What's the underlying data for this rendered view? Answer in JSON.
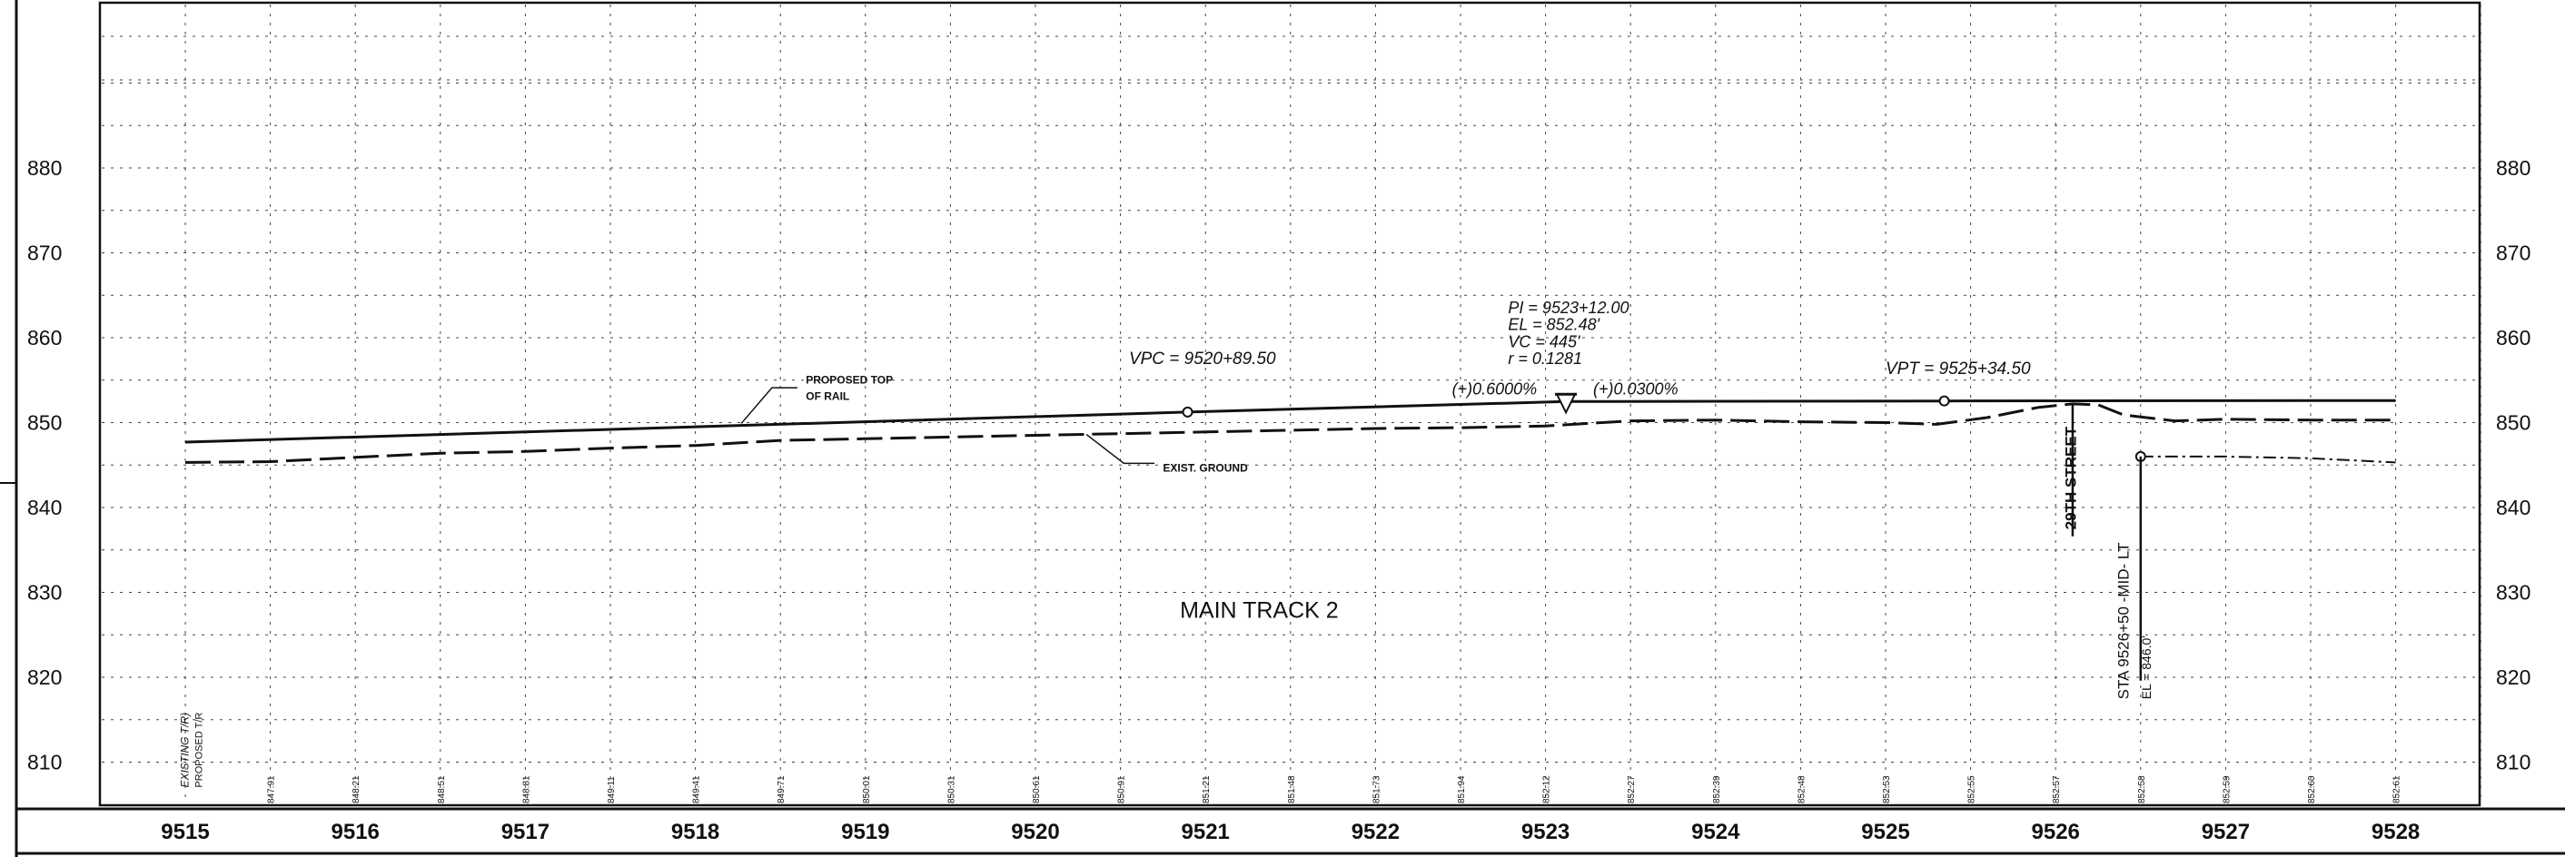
{
  "drawing": {
    "title": "MAIN TRACK 2"
  },
  "elevation_axis": {
    "labels": [
      "880",
      "870",
      "860",
      "850",
      "840",
      "830",
      "820",
      "810"
    ],
    "values": [
      880,
      870,
      860,
      850,
      840,
      830,
      820,
      810
    ]
  },
  "station_axis": {
    "labels": [
      "9515",
      "9516",
      "9517",
      "9518",
      "9519",
      "9520",
      "9521",
      "9522",
      "9523",
      "9524",
      "9525",
      "9526",
      "9527",
      "9528"
    ],
    "values": [
      9515,
      9516,
      9517,
      9518,
      9519,
      9520,
      9521,
      9522,
      9523,
      9524,
      9525,
      9526,
      9527,
      9528
    ]
  },
  "bottom_elevation_labels": [
    {
      "station": 9515.5,
      "text": "847.91"
    },
    {
      "station": 9516.0,
      "text": "848.21"
    },
    {
      "station": 9516.5,
      "text": "848.51"
    },
    {
      "station": 9517.0,
      "text": "848.81"
    },
    {
      "station": 9517.5,
      "text": "849.11"
    },
    {
      "station": 9518.0,
      "text": "849.41"
    },
    {
      "station": 9518.5,
      "text": "849.71"
    },
    {
      "station": 9519.0,
      "text": "850.01"
    },
    {
      "station": 9519.5,
      "text": "850.31"
    },
    {
      "station": 9520.0,
      "text": "850.61"
    },
    {
      "station": 9520.5,
      "text": "850.91"
    },
    {
      "station": 9521.0,
      "text": "851.21"
    },
    {
      "station": 9521.5,
      "text": "851.48"
    },
    {
      "station": 9522.0,
      "text": "851.73"
    },
    {
      "station": 9522.5,
      "text": "851.94"
    },
    {
      "station": 9523.0,
      "text": "852.12"
    },
    {
      "station": 9523.5,
      "text": "852.27"
    },
    {
      "station": 9524.0,
      "text": "852.39"
    },
    {
      "station": 9524.5,
      "text": "852.48"
    },
    {
      "station": 9525.0,
      "text": "852.53"
    },
    {
      "station": 9525.5,
      "text": "852.55"
    },
    {
      "station": 9526.0,
      "text": "852.57"
    },
    {
      "station": 9526.5,
      "text": "852.58"
    },
    {
      "station": 9527.0,
      "text": "852.59"
    },
    {
      "station": 9527.5,
      "text": "852.60"
    },
    {
      "station": 9528.0,
      "text": "852.61"
    }
  ],
  "left_legend": {
    "line1": "EXISTING T/R)",
    "line2": "PROPOSED T/R"
  },
  "profiles": {
    "proposed_top_of_rail": {
      "label": "PROPOSED TOP OF RAIL",
      "label_line1": "PROPOSED TOP",
      "label_line2": "OF RAIL",
      "points": [
        [
          9515,
          847.7
        ],
        [
          9520.895,
          851.24
        ],
        [
          9523.12,
          852.48
        ],
        [
          9525.345,
          852.55
        ],
        [
          9528,
          852.6
        ]
      ]
    },
    "existing_ground": {
      "label": "EXIST. GROUND",
      "points": [
        [
          9515,
          845.3
        ],
        [
          9515.5,
          845.4
        ],
        [
          9516,
          845.9
        ],
        [
          9516.5,
          846.4
        ],
        [
          9517,
          846.6
        ],
        [
          9517.5,
          847.0
        ],
        [
          9518,
          847.3
        ],
        [
          9518.5,
          847.9
        ],
        [
          9519,
          848.1
        ],
        [
          9519.5,
          848.3
        ],
        [
          9520,
          848.5
        ],
        [
          9520.5,
          848.7
        ],
        [
          9521,
          848.9
        ],
        [
          9521.5,
          849.1
        ],
        [
          9522,
          849.3
        ],
        [
          9522.5,
          849.4
        ],
        [
          9523,
          849.6
        ],
        [
          9523.5,
          850.2
        ],
        [
          9524,
          850.3
        ],
        [
          9524.5,
          850.1
        ],
        [
          9525,
          850.0
        ],
        [
          9525.3,
          849.8
        ],
        [
          9525.6,
          850.6
        ],
        [
          9525.9,
          851.8
        ],
        [
          9526.1,
          852.2
        ],
        [
          9526.25,
          852.1
        ],
        [
          9526.4,
          850.9
        ],
        [
          9526.7,
          850.2
        ],
        [
          9527.0,
          850.4
        ],
        [
          9527.5,
          850.3
        ],
        [
          9528,
          850.3
        ]
      ]
    },
    "dash_dot_line": {
      "points": [
        [
          9526.5,
          846.0
        ],
        [
          9527.0,
          846.0
        ],
        [
          9527.5,
          845.8
        ],
        [
          9528,
          845.3
        ]
      ]
    }
  },
  "annotations": {
    "vpc": {
      "text": "VPC  =  9520+89.50",
      "station": 9520.895,
      "elevation": 851.24
    },
    "vpt": {
      "text": "VPT  =  9525+34.50",
      "station": 9525.345,
      "elevation": 852.55
    },
    "pi": {
      "line1": "PI  =  9523+12.00",
      "line2": "EL  =  852.48'",
      "line3": "VC  =  445'",
      "line4": "r  =  0.1281",
      "station": 9523.12,
      "elevation": 852.48
    },
    "grade_in": "(+)0.6000%",
    "grade_out": "(+)0.0300%",
    "street": {
      "text": "29TH  STREET",
      "station": 9526.1
    },
    "mid_point": {
      "line1": "STA 9526+50  -MID- LT",
      "line2": "EL = 846.0'",
      "station": 9526.5,
      "elevation": 846.0
    }
  }
}
